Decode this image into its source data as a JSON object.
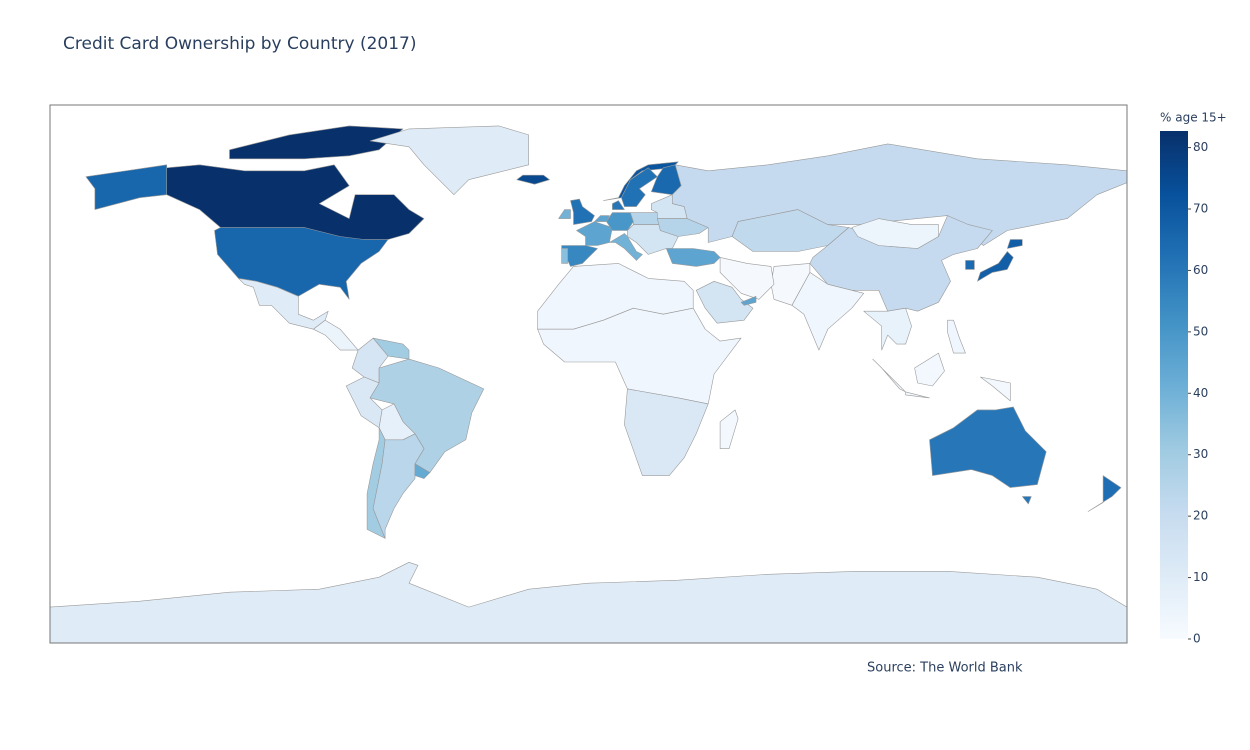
{
  "chart_data": {
    "type": "choropleth",
    "title": "Credit Card Ownership by Country (2017)",
    "annotation": "Source: The World Bank",
    "colorbar_title": "% age 15+",
    "values": [
      82.7,
      65.6,
      10,
      10,
      5,
      14,
      30,
      12,
      27,
      7,
      30,
      24,
      43,
      10,
      62,
      40,
      75,
      71,
      62,
      65,
      60,
      45,
      55,
      35,
      45,
      50,
      40,
      25,
      15,
      15,
      25,
      45,
      21,
      22,
      21,
      4,
      3,
      1,
      1,
      15,
      45,
      68,
      64,
      3,
      3,
      12,
      2,
      6,
      2,
      60,
      63,
      3
    ],
    "zlim": [
      0,
      82.7
    ],
    "zticks": [
      0,
      10,
      20,
      30,
      40,
      50,
      60,
      70,
      80
    ],
    "colorscale": [
      [
        0,
        "#f7fbff"
      ],
      [
        0.125,
        "#deebf7"
      ],
      [
        0.25,
        "#c6dbef"
      ],
      [
        0.375,
        "#9ecae1"
      ],
      [
        0.5,
        "#6baed6"
      ],
      [
        0.625,
        "#4292c6"
      ],
      [
        0.75,
        "#2171b5"
      ],
      [
        0.875,
        "#08519c"
      ],
      [
        1,
        "#08306b"
      ]
    ]
  }
}
